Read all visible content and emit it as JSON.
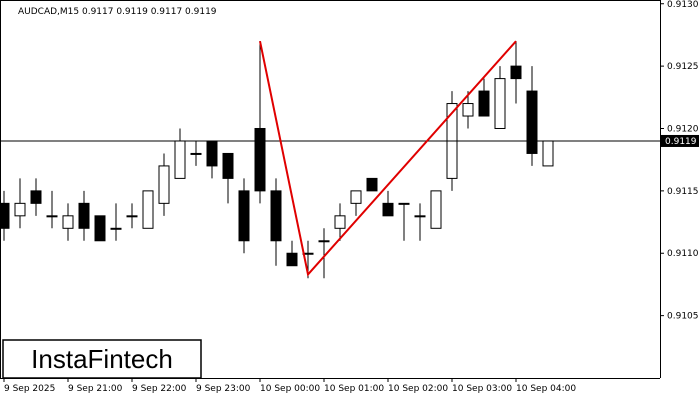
{
  "chart_data": {
    "type": "candlestick",
    "title": "AUDCAD,M15  0.9117 0.9119 0.9117 0.9119",
    "watermark": "InstaFintech",
    "categories": [
      "9 Sep 2025",
      null,
      null,
      null,
      "9 Sep 21:00",
      null,
      null,
      null,
      "9 Sep 22:00",
      null,
      null,
      null,
      "9 Sep 23:00",
      null,
      null,
      null,
      "10 Sep 00:00",
      null,
      null,
      null,
      "10 Sep 01:00",
      null,
      null,
      null,
      "10 Sep 02:00",
      null,
      null,
      null,
      "10 Sep 03:00",
      null,
      null,
      null,
      "10 Sep 04:00",
      null,
      null
    ],
    "open": [
      0.9114,
      0.9113,
      0.9115,
      0.9113,
      0.9112,
      0.9114,
      0.9113,
      0.9112,
      0.9113,
      0.9112,
      0.9114,
      0.9116,
      0.9118,
      0.9119,
      0.9118,
      0.9115,
      0.912,
      0.9115,
      0.911,
      0.911,
      0.9111,
      0.9112,
      0.9114,
      0.9116,
      0.9114,
      0.9114,
      0.9113,
      0.9112,
      0.9116,
      0.9121,
      0.9123,
      0.912,
      0.9125,
      0.9123,
      0.9117
    ],
    "high": [
      0.9115,
      0.9116,
      0.9116,
      0.9115,
      0.9114,
      0.9115,
      0.9113,
      0.9114,
      0.9114,
      0.9115,
      0.9118,
      0.912,
      0.9119,
      0.9119,
      0.9118,
      0.9116,
      0.9127,
      0.9116,
      0.9111,
      0.9111,
      0.9112,
      0.9114,
      0.9115,
      0.9116,
      0.9115,
      0.9114,
      0.9114,
      0.9115,
      0.9123,
      0.9123,
      0.9124,
      0.9125,
      0.9127,
      0.9125,
      0.9119
    ],
    "low": [
      0.9111,
      0.9112,
      0.9113,
      0.9112,
      0.9111,
      0.9111,
      0.9111,
      0.9111,
      0.9112,
      0.9112,
      0.9113,
      0.9116,
      0.9117,
      0.9116,
      0.9114,
      0.911,
      0.9114,
      0.9109,
      0.9109,
      0.9108,
      0.9108,
      0.9111,
      0.9113,
      0.9115,
      0.9113,
      0.9111,
      0.9111,
      0.9112,
      0.9115,
      0.912,
      0.9121,
      0.912,
      0.9122,
      0.9117,
      0.9117
    ],
    "close": [
      0.9112,
      0.9114,
      0.9114,
      0.9113,
      0.9113,
      0.9112,
      0.9111,
      0.9112,
      0.9113,
      0.9115,
      0.9117,
      0.9119,
      0.9118,
      0.9117,
      0.9116,
      0.9111,
      0.9115,
      0.9111,
      0.9109,
      0.911,
      0.9111,
      0.9113,
      0.9115,
      0.9115,
      0.9113,
      0.9114,
      0.9113,
      0.9115,
      0.9122,
      0.9122,
      0.9121,
      0.9124,
      0.9124,
      0.9118,
      0.9119
    ],
    "up_color": "#ffffff",
    "down_color": "#000000",
    "ylim": [
      0.91,
      0.91303
    ],
    "yticks": [
      0.9105,
      {
        "value": 0.911,
        "label": "0.9110"
      },
      0.9115,
      {
        "value": 0.912,
        "label": "0.9120"
      },
      0.9125,
      {
        "value": 0.913,
        "label": "0.9130"
      }
    ],
    "current_price": 0.9119,
    "pattern": {
      "color": "#e00000",
      "points": [
        [
          16,
          0.9127
        ],
        [
          19,
          0.91083
        ],
        [
          32,
          0.9127
        ]
      ]
    }
  }
}
